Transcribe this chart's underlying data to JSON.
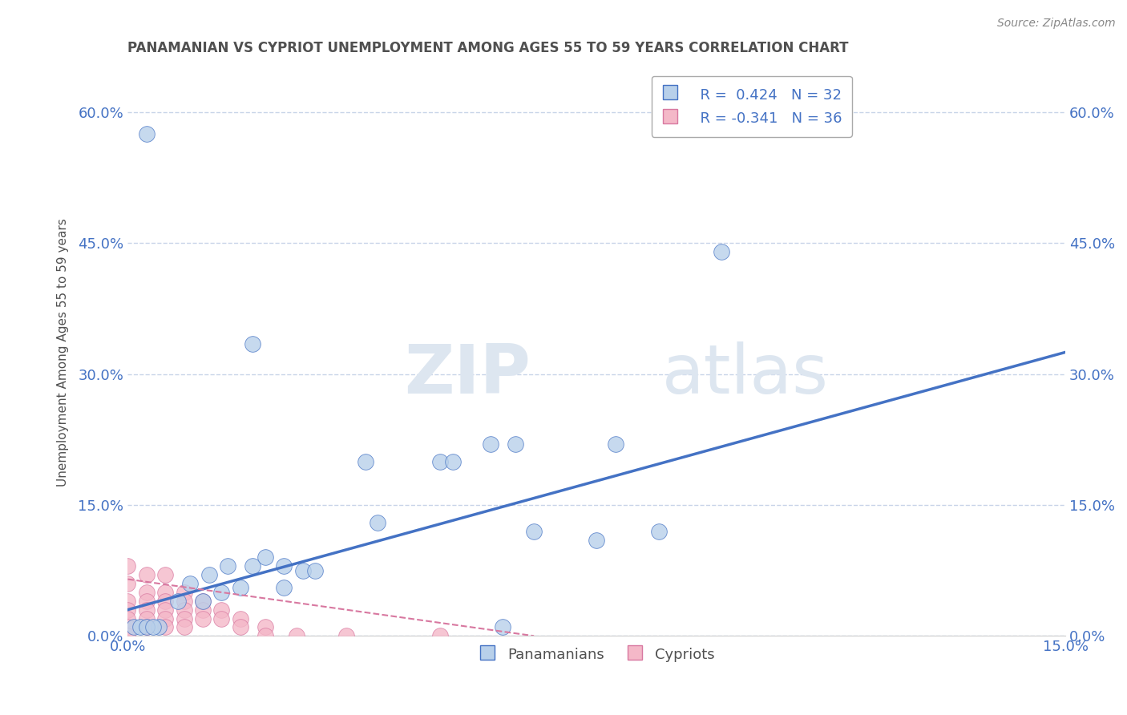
{
  "title": "PANAMANIAN VS CYPRIOT UNEMPLOYMENT AMONG AGES 55 TO 59 YEARS CORRELATION CHART",
  "source": "Source: ZipAtlas.com",
  "ylabel": "Unemployment Among Ages 55 to 59 years",
  "ytick_labels": [
    "0.0%",
    "15.0%",
    "30.0%",
    "45.0%",
    "60.0%"
  ],
  "ytick_values": [
    0.0,
    0.15,
    0.3,
    0.45,
    0.6
  ],
  "xlim": [
    0.0,
    0.15
  ],
  "ylim": [
    0.0,
    0.65
  ],
  "legend_r_blue": "R =  0.424",
  "legend_n_blue": "N = 32",
  "legend_r_pink": "R = -0.341",
  "legend_n_pink": "N = 36",
  "blue_color": "#b8d0ea",
  "pink_color": "#f4b8c8",
  "blue_line_color": "#4472c4",
  "pink_edge_color": "#d878a0",
  "blue_scatter": [
    [
      0.003,
      0.575
    ],
    [
      0.02,
      0.335
    ],
    [
      0.095,
      0.44
    ],
    [
      0.005,
      0.01
    ],
    [
      0.008,
      0.04
    ],
    [
      0.01,
      0.06
    ],
    [
      0.012,
      0.04
    ],
    [
      0.013,
      0.07
    ],
    [
      0.015,
      0.05
    ],
    [
      0.016,
      0.08
    ],
    [
      0.018,
      0.055
    ],
    [
      0.02,
      0.08
    ],
    [
      0.022,
      0.09
    ],
    [
      0.025,
      0.08
    ],
    [
      0.025,
      0.055
    ],
    [
      0.028,
      0.075
    ],
    [
      0.03,
      0.075
    ],
    [
      0.038,
      0.2
    ],
    [
      0.04,
      0.13
    ],
    [
      0.05,
      0.2
    ],
    [
      0.052,
      0.2
    ],
    [
      0.06,
      0.01
    ],
    [
      0.065,
      0.12
    ],
    [
      0.075,
      0.11
    ],
    [
      0.058,
      0.22
    ],
    [
      0.062,
      0.22
    ],
    [
      0.078,
      0.22
    ],
    [
      0.085,
      0.12
    ],
    [
      0.001,
      0.01
    ],
    [
      0.002,
      0.01
    ],
    [
      0.003,
      0.01
    ],
    [
      0.004,
      0.01
    ]
  ],
  "pink_scatter": [
    [
      0.0,
      0.08
    ],
    [
      0.0,
      0.06
    ],
    [
      0.0,
      0.04
    ],
    [
      0.0,
      0.03
    ],
    [
      0.0,
      0.02
    ],
    [
      0.0,
      0.01
    ],
    [
      0.0,
      0.0
    ],
    [
      0.003,
      0.07
    ],
    [
      0.003,
      0.05
    ],
    [
      0.003,
      0.04
    ],
    [
      0.003,
      0.03
    ],
    [
      0.003,
      0.02
    ],
    [
      0.003,
      0.01
    ],
    [
      0.006,
      0.07
    ],
    [
      0.006,
      0.05
    ],
    [
      0.006,
      0.04
    ],
    [
      0.006,
      0.03
    ],
    [
      0.006,
      0.02
    ],
    [
      0.006,
      0.01
    ],
    [
      0.009,
      0.05
    ],
    [
      0.009,
      0.04
    ],
    [
      0.009,
      0.03
    ],
    [
      0.009,
      0.02
    ],
    [
      0.009,
      0.01
    ],
    [
      0.012,
      0.04
    ],
    [
      0.012,
      0.03
    ],
    [
      0.012,
      0.02
    ],
    [
      0.015,
      0.03
    ],
    [
      0.015,
      0.02
    ],
    [
      0.018,
      0.02
    ],
    [
      0.018,
      0.01
    ],
    [
      0.022,
      0.01
    ],
    [
      0.022,
      0.0
    ],
    [
      0.027,
      0.0
    ],
    [
      0.035,
      0.0
    ],
    [
      0.05,
      0.0
    ]
  ],
  "blue_line_x": [
    0.0,
    0.15
  ],
  "blue_line_y": [
    0.03,
    0.325
  ],
  "pink_line_x": [
    0.0,
    0.065
  ],
  "pink_line_y": [
    0.065,
    0.0
  ],
  "watermark_zip": "ZIP",
  "watermark_atlas": "atlas",
  "background_color": "#ffffff",
  "grid_color": "#c8d4e8",
  "title_color": "#505050",
  "axis_label_color": "#4472c4",
  "axis_tick_color": "#505050"
}
